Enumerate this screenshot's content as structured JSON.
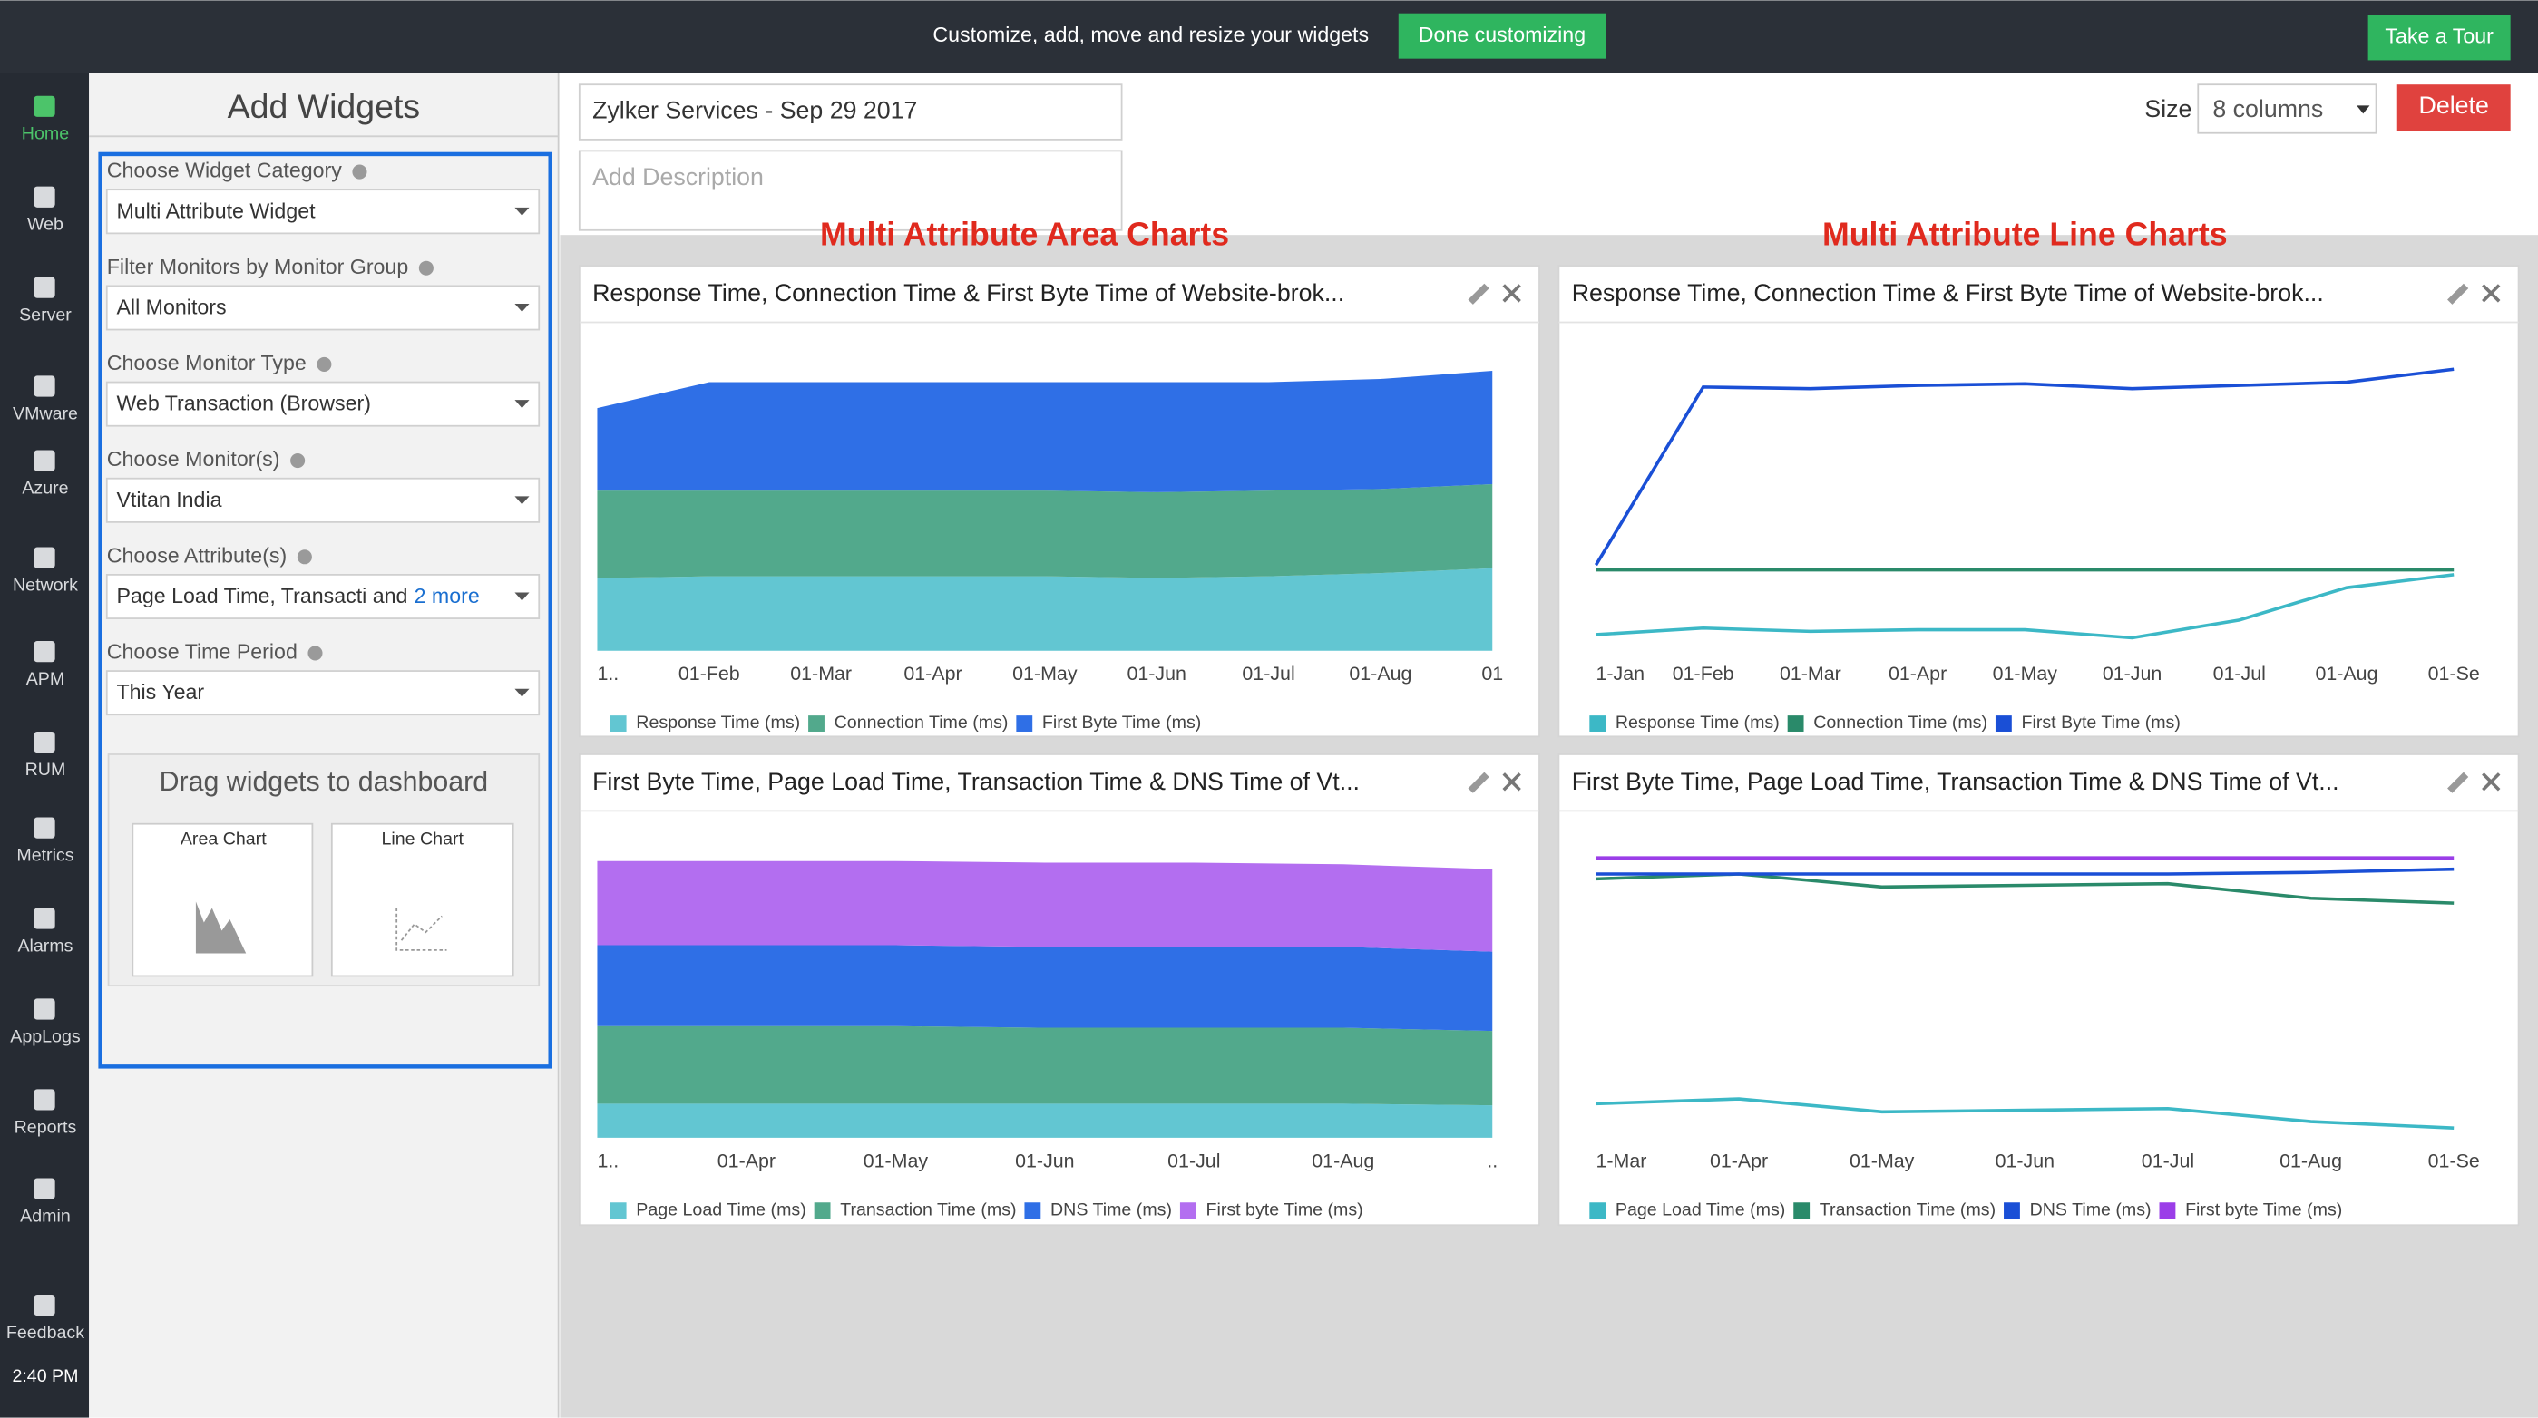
{
  "topbar": {
    "message": "Customize, add, move and resize your widgets",
    "done_button": "Done customizing",
    "tour_button": "Take a Tour"
  },
  "sidebar": {
    "items": [
      "Home",
      "Web",
      "Server",
      "VMware",
      "Azure",
      "Network",
      "APM",
      "RUM",
      "Metrics",
      "Alarms",
      "AppLogs",
      "Reports",
      "Admin",
      "Feedback"
    ],
    "time": "2:40 PM"
  },
  "panel": {
    "title": "Add Widgets",
    "fields": [
      {
        "label": "Choose Widget Category",
        "value": "Multi Attribute Widget"
      },
      {
        "label": "Filter Monitors by Monitor Group",
        "value": "All Monitors"
      },
      {
        "label": "Choose Monitor Type",
        "value": "Web Transaction (Browser)"
      },
      {
        "label": "Choose Monitor(s)",
        "value": "Vtitan India"
      },
      {
        "label": "Choose Attribute(s)",
        "value": "Page Load Time, Transacti and",
        "more": "2 more"
      },
      {
        "label": "Choose Time Period",
        "value": "This Year"
      }
    ],
    "drag_title": "Drag widgets to dashboard",
    "widgets": [
      "Area Chart",
      "Line Chart"
    ]
  },
  "header": {
    "dashboard_name": "Zylker Services - Sep 29 2017",
    "description_placeholder": "Add Description",
    "size_label": "Size",
    "size_value": "8 columns",
    "delete_button": "Delete"
  },
  "annotations": [
    "Multi Attribute Area Charts",
    "Multi Attribute Line Charts"
  ],
  "chart_data": [
    {
      "type": "area",
      "stacked": true,
      "title": "Response Time, Connection Time & First Byte Time of Website-brok...",
      "categories": [
        "1..",
        "01-Feb",
        "01-Mar",
        "01-Apr",
        "01-May",
        "01-Jun",
        "01-Jul",
        "01-Aug",
        "01"
      ],
      "ylim": [
        0,
        200
      ],
      "series": [
        {
          "name": "Response Time (ms)",
          "color": "#62c6d2",
          "values": [
            45,
            46,
            46,
            46,
            46,
            45,
            46,
            48,
            51
          ]
        },
        {
          "name": "Connection Time (ms)",
          "color": "#52a98c",
          "values": [
            54,
            53,
            53,
            53,
            53,
            53,
            53,
            52,
            52
          ]
        },
        {
          "name": "First Byte Time (ms)",
          "color": "#2f6fe6",
          "values": [
            51,
            67,
            67,
            67,
            67,
            68,
            67,
            68,
            70
          ]
        }
      ]
    },
    {
      "type": "line",
      "title": "Response Time, Connection Time & First Byte Time of Website-brok...",
      "categories": [
        "1-Jan",
        "01-Feb",
        "01-Mar",
        "01-Apr",
        "01-May",
        "01-Jun",
        "01-Jul",
        "01-Aug",
        "01-Se"
      ],
      "ylim": [
        0,
        200
      ],
      "series": [
        {
          "name": "Response Time (ms)",
          "color": "#3cb8c6",
          "values": [
            10,
            14,
            12,
            13,
            13,
            8,
            19,
            39,
            47
          ]
        },
        {
          "name": "Connection Time (ms)",
          "color": "#2a8a6a",
          "values": [
            50,
            50,
            50,
            50,
            50,
            50,
            50,
            50,
            50
          ]
        },
        {
          "name": "First Byte Time (ms)",
          "color": "#1a4fd6",
          "values": [
            53,
            163,
            162,
            164,
            165,
            162,
            164,
            166,
            174
          ]
        }
      ]
    },
    {
      "type": "area",
      "stacked": true,
      "title": "First Byte Time, Page Load Time, Transaction Time & DNS Time of Vt...",
      "categories": [
        "1..",
        "01-Apr",
        "01-May",
        "01-Jun",
        "01-Jul",
        "01-Aug",
        ".."
      ],
      "ylim": [
        0,
        200
      ],
      "series": [
        {
          "name": "Page Load Time (ms)",
          "color": "#62c6d2",
          "values": [
            21,
            21,
            21,
            21,
            21,
            21,
            20
          ]
        },
        {
          "name": "Transaction Time (ms)",
          "color": "#52a98c",
          "values": [
            48,
            48,
            48,
            47,
            47,
            47,
            46
          ]
        },
        {
          "name": "DNS Time (ms)",
          "color": "#2f6fe6",
          "values": [
            50,
            50,
            50,
            50,
            50,
            50,
            49
          ]
        },
        {
          "name": "First byte Time (ms)",
          "color": "#b36ef0",
          "values": [
            52,
            52,
            52,
            52,
            52,
            51,
            51
          ]
        }
      ]
    },
    {
      "type": "line",
      "title": "First Byte Time, Page Load Time, Transaction Time & DNS Time of Vt...",
      "categories": [
        "1-Mar",
        "01-Apr",
        "01-May",
        "01-Jun",
        "01-Jul",
        "01-Aug",
        "01-Se"
      ],
      "ylim": [
        0,
        200
      ],
      "series": [
        {
          "name": "Page Load Time (ms)",
          "color": "#3cb8c6",
          "values": [
            21,
            24,
            16,
            17,
            18,
            10,
            6
          ]
        },
        {
          "name": "Transaction Time (ms)",
          "color": "#2a8a6a",
          "values": [
            160,
            163,
            155,
            156,
            157,
            148,
            145
          ]
        },
        {
          "name": "DNS Time (ms)",
          "color": "#1a4fd6",
          "values": [
            163,
            163,
            163,
            163,
            163,
            164,
            166
          ]
        },
        {
          "name": "First byte Time (ms)",
          "color": "#9b3ee8",
          "values": [
            173,
            173,
            173,
            173,
            173,
            173,
            173
          ]
        }
      ]
    }
  ]
}
